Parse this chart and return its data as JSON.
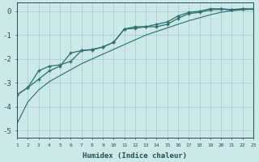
{
  "x": [
    1,
    2,
    3,
    4,
    5,
    6,
    7,
    8,
    9,
    10,
    11,
    12,
    13,
    14,
    15,
    16,
    17,
    18,
    19,
    20,
    21,
    22,
    23
  ],
  "line1": [
    -3.5,
    -3.2,
    -2.85,
    -2.5,
    -2.3,
    -1.75,
    -1.65,
    -1.6,
    -1.5,
    -1.3,
    -0.75,
    -0.65,
    -0.65,
    -0.65,
    -0.55,
    -0.3,
    -0.1,
    -0.05,
    0.05,
    0.08,
    0.05,
    0.08,
    0.08
  ],
  "line2": [
    -3.5,
    -3.2,
    -2.5,
    -2.3,
    -2.25,
    -2.1,
    -1.65,
    -1.62,
    -1.5,
    -1.3,
    -0.75,
    -0.72,
    -0.65,
    -0.55,
    -0.45,
    -0.2,
    -0.05,
    0.0,
    0.1,
    0.1,
    0.07,
    0.1,
    0.1
  ],
  "line3": [
    -4.7,
    -3.8,
    -3.3,
    -2.95,
    -2.7,
    -2.45,
    -2.2,
    -2.0,
    -1.8,
    -1.6,
    -1.4,
    -1.2,
    -1.0,
    -0.85,
    -0.7,
    -0.55,
    -0.4,
    -0.28,
    -0.15,
    -0.05,
    0.02,
    0.06,
    0.08
  ],
  "bg_color": "#cce8e8",
  "line_color": "#2a6e6e",
  "grid_color": "#9ecece",
  "xlabel": "Humidex (Indice chaleur)",
  "xlim": [
    1,
    23
  ],
  "ylim": [
    -5.3,
    0.35
  ],
  "yticks": [
    0,
    -1,
    -2,
    -3,
    -4,
    -5
  ],
  "xtick_labels": [
    "1",
    "2",
    "3",
    "4",
    "5",
    "6",
    "7",
    "8",
    "9",
    "10",
    "11",
    "12",
    "13",
    "14",
    "15",
    "16",
    "17",
    "18",
    "19",
    "20",
    "21",
    "22",
    "23"
  ],
  "font_color": "#1e5050"
}
